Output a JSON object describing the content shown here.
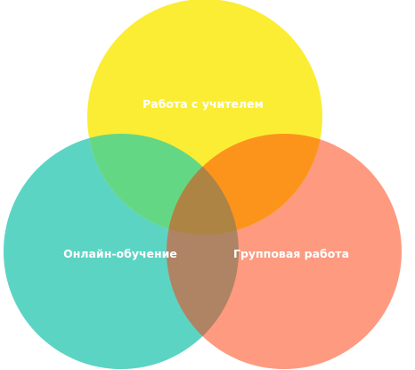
{
  "diagram": {
    "type": "venn",
    "background": "#ffffff",
    "sets": [
      {
        "label": "Работа с учителем",
        "color": "#fbed34"
      },
      {
        "label": "Онлайн-обучение",
        "color": "#5cd4c4"
      },
      {
        "label": "Групповая работа",
        "color": "#fe9a80"
      }
    ],
    "overlaps": {
      "top_left": "#64d784",
      "top_right": "#fc941c",
      "left_right": "#ae8464",
      "center": "#ae8444"
    }
  }
}
